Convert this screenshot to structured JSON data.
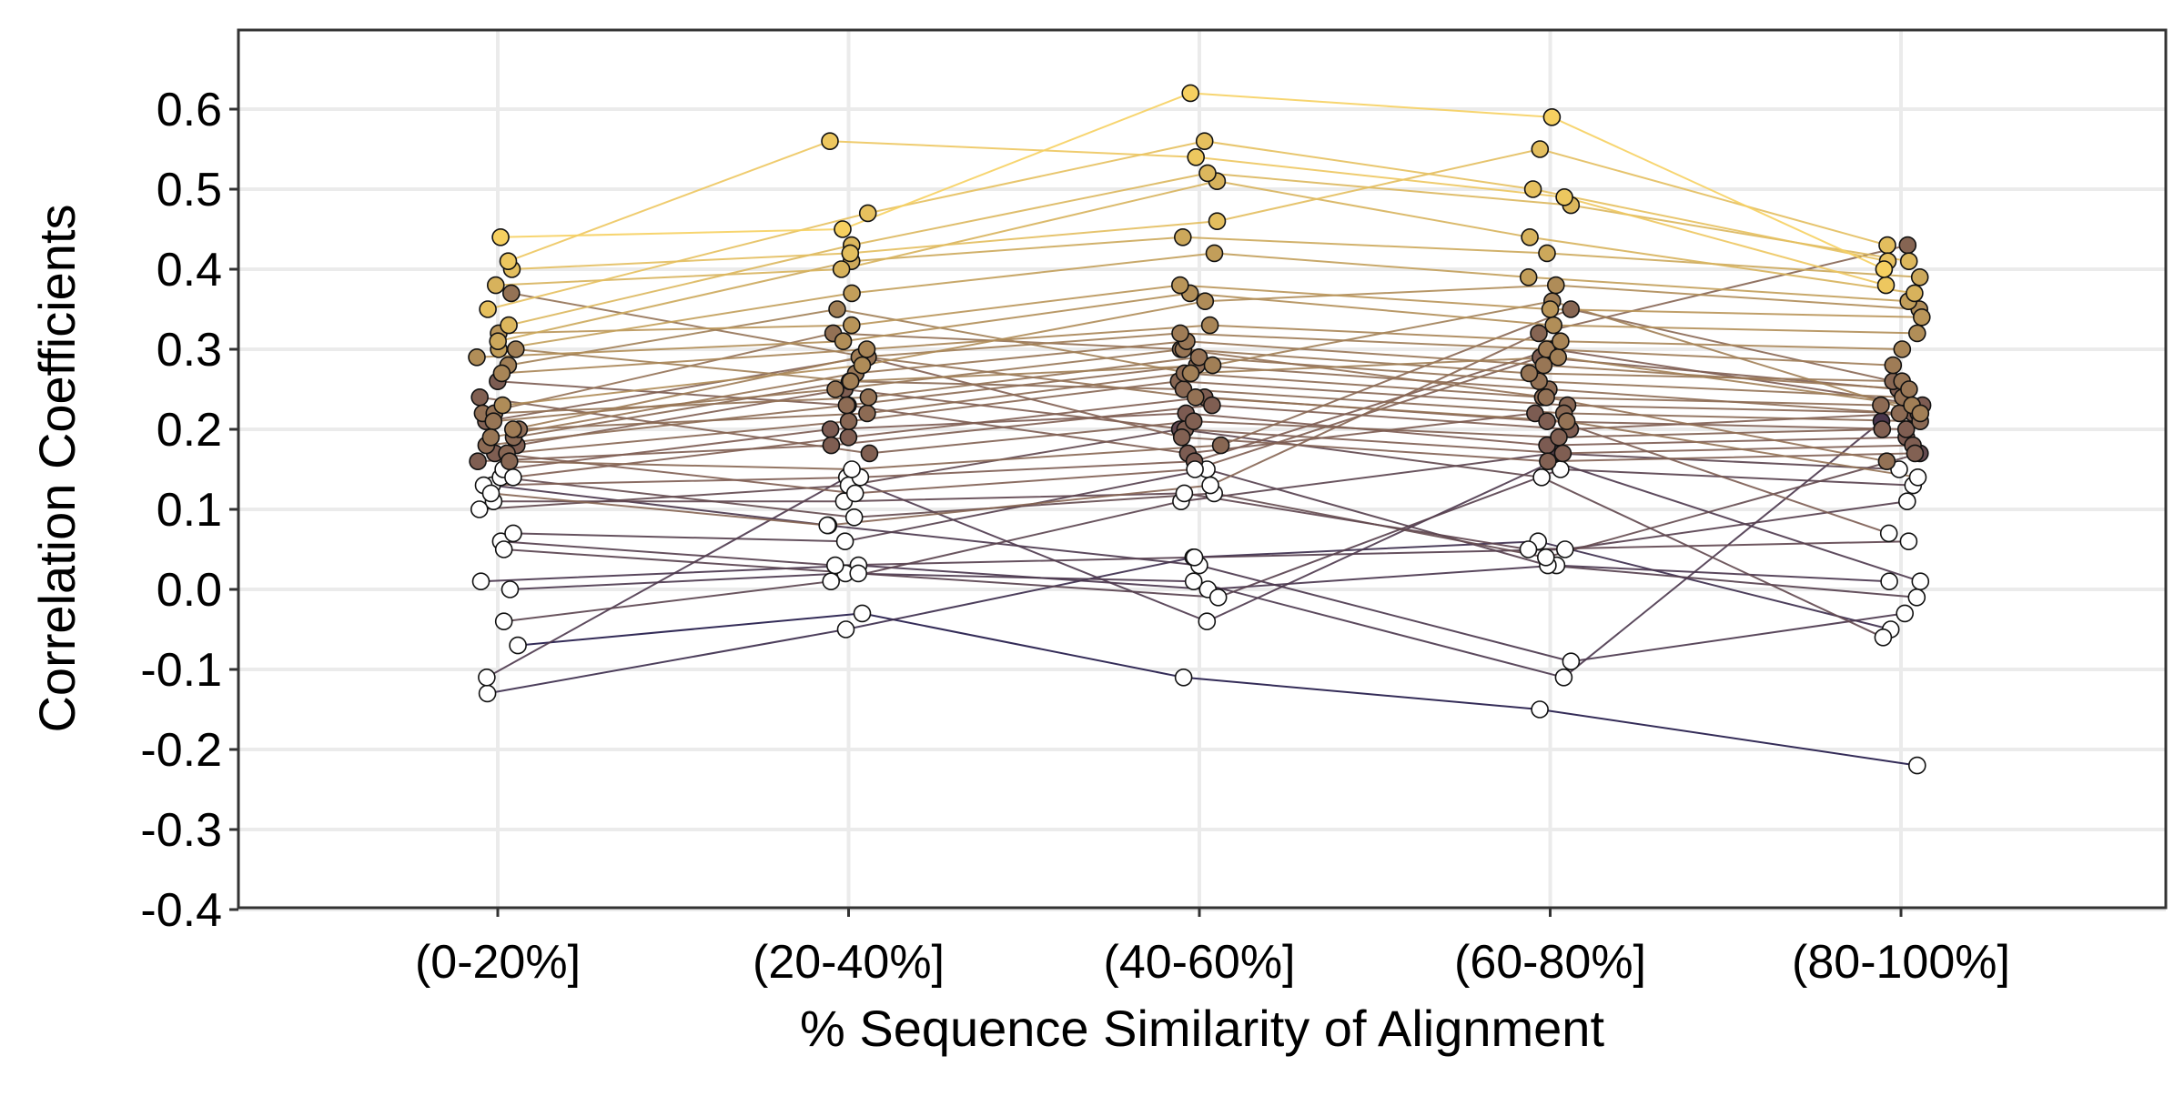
{
  "chart_data": {
    "type": "line",
    "xlabel": "% Sequence Similarity of Alignment",
    "ylabel": "Correlation Coefficients",
    "categories": [
      "(0-20%]",
      "(20-40%]",
      "(40-60%]",
      "(60-80%]",
      "(80-100%]"
    ],
    "y_ticks": [
      "0.6",
      "0.5",
      "0.4",
      "0.3",
      "0.2",
      "0.1",
      "0.0",
      "-0.1",
      "-0.2",
      "-0.3",
      "-0.4"
    ],
    "ylim": [
      -0.4,
      0.7
    ],
    "grid": true,
    "legend": "none",
    "significance_threshold": 0.16,
    "colors": {
      "low": "#1e1546",
      "mid": "#7d5c52",
      "high": "#f6d060",
      "insignificant_point": "#ffffff",
      "grid": "#ebebeb",
      "panel_border": "#333333"
    },
    "series": [
      {
        "values": [
          0.41,
          0.56,
          0.54,
          0.49,
          0.38
        ]
      },
      {
        "values": [
          0.44,
          0.45,
          0.62,
          0.59,
          0.4
        ]
      },
      {
        "values": [
          0.38,
          0.4,
          0.51,
          0.44,
          0.37
        ]
      },
      {
        "values": [
          0.35,
          0.47,
          0.56,
          0.5,
          0.41
        ]
      },
      {
        "values": [
          0.4,
          0.42,
          0.46,
          0.55,
          0.43
        ]
      },
      {
        "values": [
          0.33,
          0.43,
          0.52,
          0.48,
          0.41
        ]
      },
      {
        "values": [
          0.31,
          0.41,
          0.44,
          0.42,
          0.39
        ]
      },
      {
        "values": [
          0.3,
          0.37,
          0.42,
          0.39,
          0.36
        ]
      },
      {
        "values": [
          0.32,
          0.33,
          0.38,
          0.35,
          0.34
        ]
      },
      {
        "values": [
          0.29,
          0.31,
          0.37,
          0.33,
          0.32
        ]
      },
      {
        "values": [
          0.27,
          0.3,
          0.33,
          0.31,
          0.3
        ]
      },
      {
        "values": [
          0.23,
          0.28,
          0.36,
          0.38,
          0.35
        ]
      },
      {
        "values": [
          0.21,
          0.25,
          0.3,
          0.27,
          0.26
        ]
      },
      {
        "values": [
          0.2,
          0.29,
          0.32,
          0.3,
          0.28
        ]
      },
      {
        "values": [
          0.19,
          0.27,
          0.31,
          0.28,
          0.25
        ]
      },
      {
        "values": [
          0.22,
          0.24,
          0.29,
          0.26,
          0.24
        ]
      },
      {
        "values": [
          0.18,
          0.23,
          0.28,
          0.25,
          0.22
        ]
      },
      {
        "values": [
          0.2,
          0.22,
          0.27,
          0.24,
          0.23
        ]
      },
      {
        "values": [
          0.17,
          0.21,
          0.26,
          0.23,
          0.22
        ]
      },
      {
        "values": [
          0.19,
          0.26,
          0.25,
          0.22,
          0.21
        ]
      },
      {
        "values": [
          0.14,
          0.19,
          0.24,
          0.21,
          0.2
        ]
      },
      {
        "values": [
          0.16,
          0.18,
          0.23,
          0.2,
          0.22
        ]
      },
      {
        "values": [
          0.15,
          0.2,
          0.22,
          0.18,
          0.19
        ]
      },
      {
        "values": [
          0.18,
          0.25,
          0.2,
          0.17,
          0.18
        ]
      },
      {
        "values": [
          0.21,
          0.29,
          0.19,
          0.16,
          0.17
        ]
      },
      {
        "values": [
          0.16,
          0.15,
          0.18,
          0.35,
          0.26
        ]
      },
      {
        "values": [
          0.22,
          0.32,
          0.3,
          0.24,
          0.16
        ]
      },
      {
        "values": [
          0.3,
          0.26,
          0.28,
          0.36,
          0.22
        ]
      },
      {
        "values": [
          0.13,
          0.14,
          0.16,
          0.3,
          0.23
        ]
      },
      {
        "values": [
          0.12,
          0.08,
          0.13,
          0.32,
          0.43
        ]
      },
      {
        "values": [
          0.14,
          0.09,
          0.12,
          0.04,
          0.17
        ]
      },
      {
        "values": [
          0.13,
          0.08,
          0.03,
          -0.09,
          -0.03
        ]
      },
      {
        "values": [
          0.11,
          0.11,
          0.12,
          0.05,
          0.06
        ]
      },
      {
        "values": [
          0.06,
          0.03,
          0.04,
          0.05,
          0.11
        ]
      },
      {
        "values": [
          0.01,
          0.03,
          0.0,
          0.03,
          0.01
        ]
      },
      {
        "values": [
          0.05,
          0.02,
          -0.01,
          0.15,
          0.13
        ]
      },
      {
        "values": [
          -0.07,
          -0.03,
          -0.11,
          -0.15,
          -0.22
        ]
      },
      {
        "values": [
          -0.11,
          0.14,
          -0.04,
          0.16,
          0.01
        ]
      },
      {
        "values": [
          -0.13,
          -0.05,
          0.04,
          0.06,
          -0.05
        ]
      },
      {
        "values": [
          0.0,
          0.02,
          0.01,
          -0.11,
          0.21
        ]
      },
      {
        "values": [
          0.07,
          0.06,
          0.15,
          0.03,
          -0.01
        ]
      },
      {
        "values": [
          -0.04,
          0.01,
          0.11,
          0.17,
          0.15
        ]
      },
      {
        "values": [
          0.1,
          0.13,
          0.2,
          0.14,
          -0.06
        ]
      },
      {
        "values": [
          0.26,
          0.23,
          0.17,
          0.22,
          0.07
        ]
      },
      {
        "values": [
          0.37,
          0.29,
          0.24,
          0.21,
          0.14
        ]
      },
      {
        "values": [
          0.28,
          0.35,
          0.27,
          0.29,
          0.23
        ]
      },
      {
        "values": [
          0.24,
          0.17,
          0.21,
          0.19,
          0.2
        ]
      },
      {
        "values": [
          0.17,
          0.12,
          0.15,
          0.29,
          0.25
        ]
      }
    ]
  }
}
